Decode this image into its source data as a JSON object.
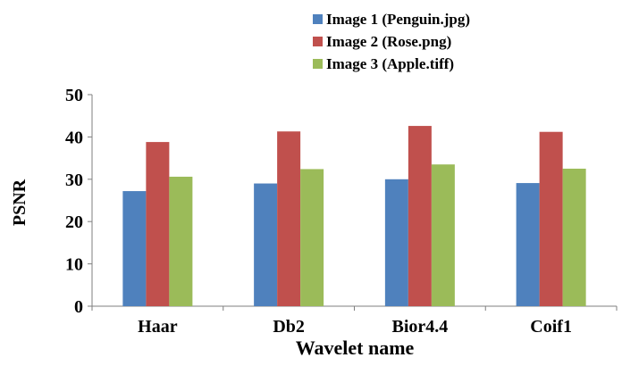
{
  "chart_data": {
    "type": "bar",
    "title": "",
    "xlabel": "Wavelet name",
    "ylabel": "PSNR",
    "categories": [
      "Haar",
      "Db2",
      "Bior4.4",
      "Coif1"
    ],
    "series": [
      {
        "name": "Image 1 (Penguin.jpg)",
        "values": [
          27.2,
          29.0,
          30.0,
          29.1
        ],
        "color": "#4f81bd"
      },
      {
        "name": "Image 2 (Rose.png)",
        "values": [
          38.8,
          41.3,
          42.6,
          41.2
        ],
        "color": "#c0504d"
      },
      {
        "name": "Image 3 (Apple.tiff)",
        "values": [
          30.6,
          32.4,
          33.5,
          32.5
        ],
        "color": "#9bbb59"
      }
    ],
    "ylim": [
      0,
      50
    ],
    "yticks": [
      0,
      10,
      20,
      30,
      40,
      50
    ],
    "grid": false,
    "legend_position": "top-right"
  }
}
